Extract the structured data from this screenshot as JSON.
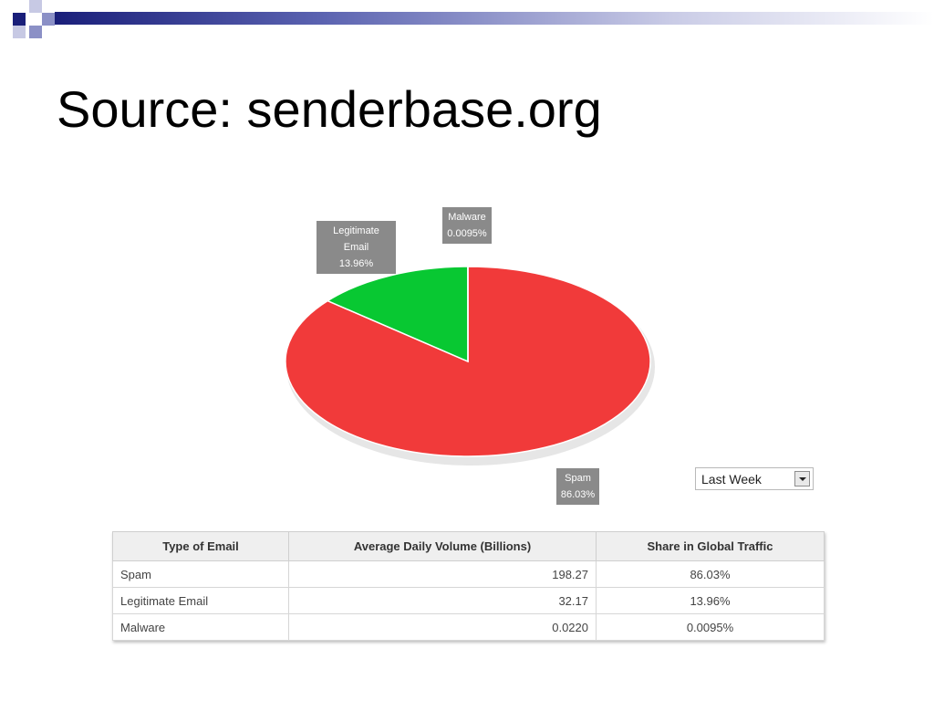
{
  "slide": {
    "title": "Source: senderbase.org"
  },
  "colors": {
    "spam": "#f13a3a",
    "legitimate": "#08c832",
    "malware": "#1a1f7a",
    "accent_bar": "#1a1f7a"
  },
  "chart_data": {
    "type": "pie",
    "slices": [
      {
        "label": "Spam",
        "value": 86.03,
        "display": "86.03%"
      },
      {
        "label": "Legitimate Email",
        "value": 13.96,
        "display": "13.96%"
      },
      {
        "label": "Malware",
        "value": 0.0095,
        "display": "0.0095%"
      }
    ]
  },
  "period_select": {
    "value": "Last Week"
  },
  "table": {
    "headers": [
      "Type of Email",
      "Average Daily Volume (Billions)",
      "Share in Global Traffic"
    ],
    "rows": [
      [
        "Spam",
        "198.27",
        "86.03%"
      ],
      [
        "Legitimate Email",
        "32.17",
        "13.96%"
      ],
      [
        "Malware",
        "0.0220",
        "0.0095%"
      ]
    ]
  }
}
